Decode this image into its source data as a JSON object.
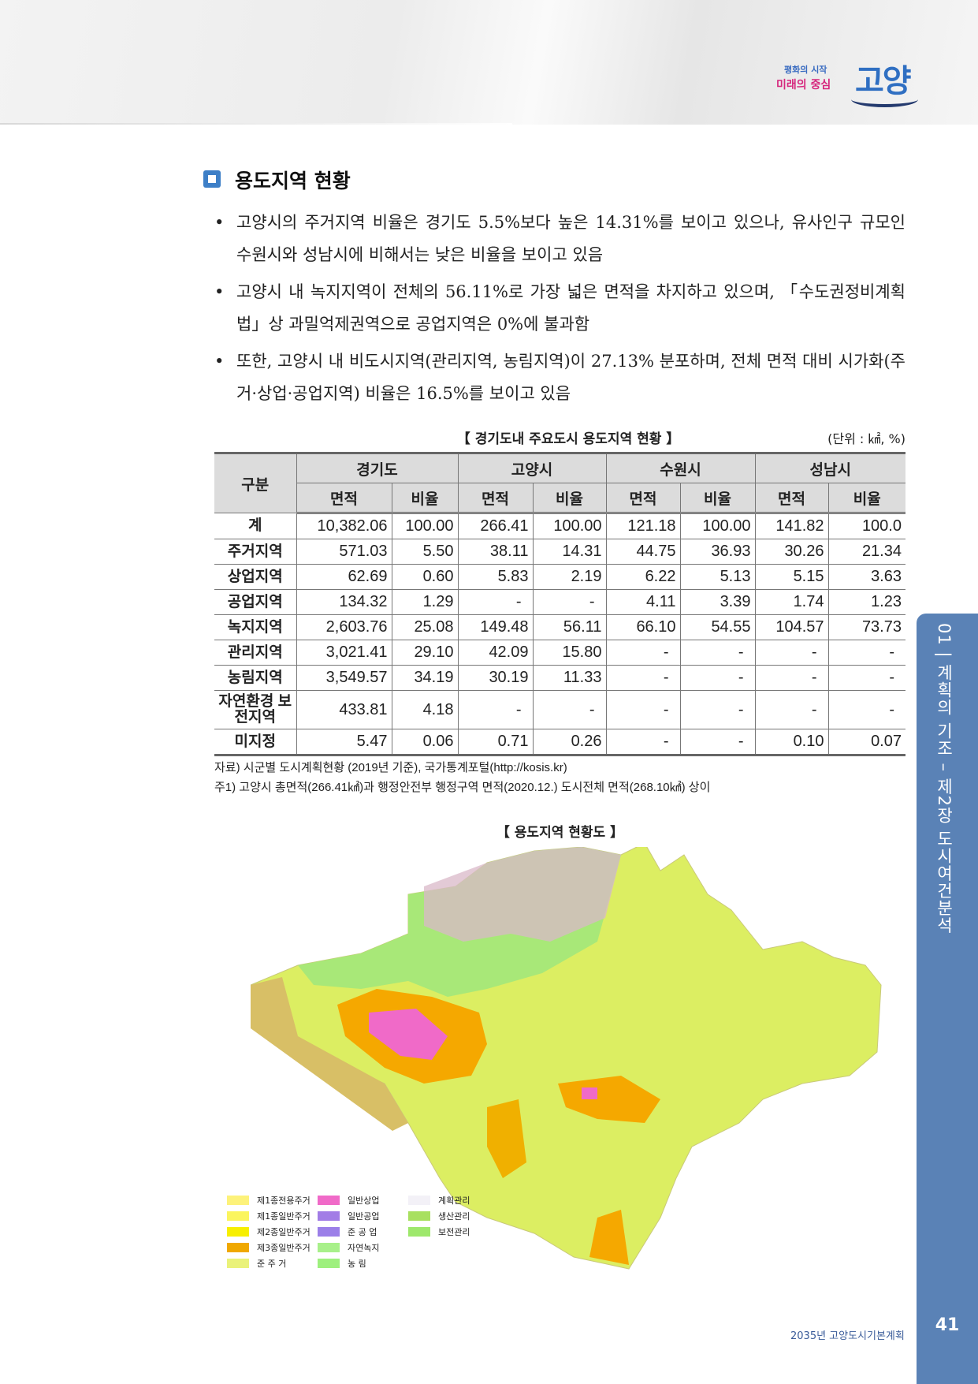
{
  "header": {
    "logo_line1": "평화의 시작",
    "logo_line2": "미래의 중심",
    "logo_city": "고양"
  },
  "section": {
    "title": "용도지역 현황"
  },
  "bullets": [
    "고양시의 주거지역 비율은 경기도 5.5%보다 높은 14.31%를 보이고 있으나, 유사인구 규모인 수원시와 성남시에 비해서는 낮은 비율을 보이고 있음",
    "고양시 내 녹지지역이 전체의 56.11%로 가장 넓은 면적을 차지하고 있으며, 「수도권정비계획법」상 과밀억제권역으로 공업지역은 0%에 불과함",
    "또한, 고양시 내 비도시지역(관리지역, 농림지역)이 27.13% 분포하며, 전체 면적 대비 시가화(주거·상업·공업지역) 비율은 16.5%를 보이고 있음"
  ],
  "table": {
    "title": "【 경기도내 주요도시 용도지역 현황 】",
    "unit": "(단위 : ㎢, %)",
    "corner": "구분",
    "groups": [
      "경기도",
      "고양시",
      "수원시",
      "성남시"
    ],
    "subheaders": [
      "면적",
      "비율",
      "면적",
      "비율",
      "면적",
      "비율",
      "면적",
      "비율"
    ],
    "rows": [
      {
        "label": "계",
        "values": [
          "10,382.06",
          "100.00",
          "266.41",
          "100.00",
          "121.18",
          "100.00",
          "141.82",
          "100.0"
        ]
      },
      {
        "label": "주거지역",
        "values": [
          "571.03",
          "5.50",
          "38.11",
          "14.31",
          "44.75",
          "36.93",
          "30.26",
          "21.34"
        ]
      },
      {
        "label": "상업지역",
        "values": [
          "62.69",
          "0.60",
          "5.83",
          "2.19",
          "6.22",
          "5.13",
          "5.15",
          "3.63"
        ]
      },
      {
        "label": "공업지역",
        "values": [
          "134.32",
          "1.29",
          "-",
          "-",
          "4.11",
          "3.39",
          "1.74",
          "1.23"
        ]
      },
      {
        "label": "녹지지역",
        "values": [
          "2,603.76",
          "25.08",
          "149.48",
          "56.11",
          "66.10",
          "54.55",
          "104.57",
          "73.73"
        ]
      },
      {
        "label": "관리지역",
        "values": [
          "3,021.41",
          "29.10",
          "42.09",
          "15.80",
          "-",
          "-",
          "-",
          "-"
        ]
      },
      {
        "label": "농림지역",
        "values": [
          "3,549.57",
          "34.19",
          "30.19",
          "11.33",
          "-",
          "-",
          "-",
          "-"
        ]
      },
      {
        "label": "자연환경 보전지역",
        "values": [
          "433.81",
          "4.18",
          "-",
          "-",
          "-",
          "-",
          "-",
          "-"
        ]
      },
      {
        "label": "미지정",
        "values": [
          "5.47",
          "0.06",
          "0.71",
          "0.26",
          "-",
          "-",
          "0.10",
          "0.07"
        ]
      }
    ],
    "source": "자료) 시군별 도시계획현황 (2019년 기준), 국가통계포털(http://kosis.kr)",
    "note": "주1) 고양시 총면적(266.41㎢)과 행정안전부 행정구역 면적(2020.12.) 도시전체 면적(268.10㎢) 상이"
  },
  "map": {
    "title": "【 용도지역 현황도 】",
    "legend": [
      {
        "label": "제1종전용주거",
        "color": "#fdf27a"
      },
      {
        "label": "제1종일반주거",
        "color": "#fbf55e"
      },
      {
        "label": "제2종일반주거",
        "color": "#f7ef00"
      },
      {
        "label": "제3종일반주거",
        "color": "#f0a800"
      },
      {
        "label": "준 주 거",
        "color": "#eaf27a"
      },
      {
        "label": "일반상업",
        "color": "#f06ac8"
      },
      {
        "label": "일반공업",
        "color": "#a27de6"
      },
      {
        "label": "준 공 업",
        "color": "#9b7fe8"
      },
      {
        "label": "자연녹지",
        "color": "#a8f08a"
      },
      {
        "label": "농    림",
        "color": "#9ef07e"
      },
      {
        "label": "계획관리",
        "color": "#f3f1f7"
      },
      {
        "label": "생산관리",
        "color": "#a8e060"
      },
      {
        "label": "보전관리",
        "color": "#9ee86c"
      }
    ]
  },
  "sidebar": {
    "chapter": "01 | 계획의 기조 – 제2장 도시여건분석"
  },
  "footer": {
    "book": "2035년 고양도시기본계획",
    "page": "41"
  },
  "colors": {
    "accent": "#5a82b6",
    "section_icon": "#3d7fc7",
    "table_header": "#dcdcdc"
  }
}
